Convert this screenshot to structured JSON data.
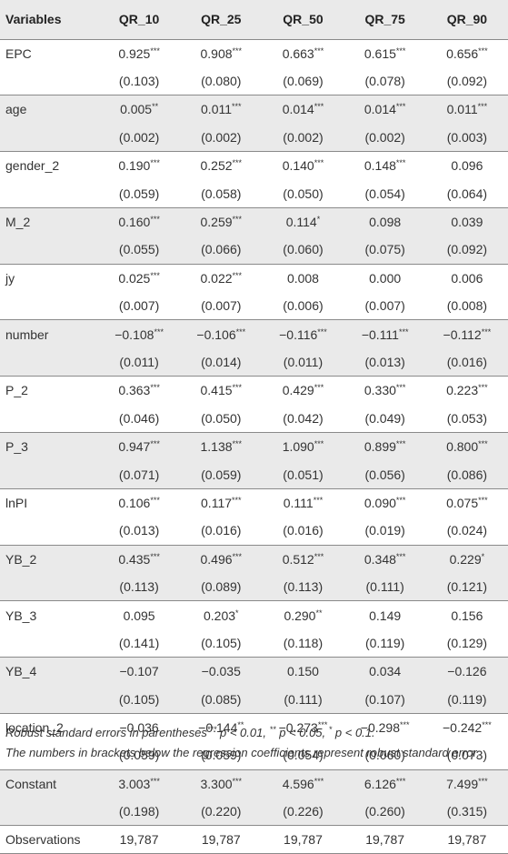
{
  "table": {
    "headers": [
      "Variables",
      "QR_10",
      "QR_25",
      "QR_50",
      "QR_75",
      "QR_90"
    ],
    "rows": [
      {
        "variable": "EPC",
        "coef": [
          [
            "0.925",
            "***"
          ],
          [
            "0.908",
            "***"
          ],
          [
            "0.663",
            "***"
          ],
          [
            "0.615",
            "***"
          ],
          [
            "0.656",
            "***"
          ]
        ],
        "se": [
          "(0.103)",
          "(0.080)",
          "(0.069)",
          "(0.078)",
          "(0.092)"
        ]
      },
      {
        "variable": "age",
        "coef": [
          [
            "0.005",
            "**"
          ],
          [
            "0.011",
            "***"
          ],
          [
            "0.014",
            "***"
          ],
          [
            "0.014",
            "***"
          ],
          [
            "0.011",
            "***"
          ]
        ],
        "se": [
          "(0.002)",
          "(0.002)",
          "(0.002)",
          "(0.002)",
          "(0.003)"
        ]
      },
      {
        "variable": "gender_2",
        "coef": [
          [
            "0.190",
            "***"
          ],
          [
            "0.252",
            "***"
          ],
          [
            "0.140",
            "***"
          ],
          [
            "0.148",
            "***"
          ],
          [
            "0.096",
            ""
          ]
        ],
        "se": [
          "(0.059)",
          "(0.058)",
          "(0.050)",
          "(0.054)",
          "(0.064)"
        ]
      },
      {
        "variable": "M_2",
        "coef": [
          [
            "0.160",
            "***"
          ],
          [
            "0.259",
            "***"
          ],
          [
            "0.114",
            "*"
          ],
          [
            "0.098",
            ""
          ],
          [
            "0.039",
            ""
          ]
        ],
        "se": [
          "(0.055)",
          "(0.066)",
          "(0.060)",
          "(0.075)",
          "(0.092)"
        ]
      },
      {
        "variable": "jy",
        "coef": [
          [
            "0.025",
            "***"
          ],
          [
            "0.022",
            "***"
          ],
          [
            "0.008",
            ""
          ],
          [
            "0.000",
            ""
          ],
          [
            "0.006",
            ""
          ]
        ],
        "se": [
          "(0.007)",
          "(0.007)",
          "(0.006)",
          "(0.007)",
          "(0.008)"
        ]
      },
      {
        "variable": "number",
        "coef": [
          [
            "−0.108",
            "***"
          ],
          [
            "−0.106",
            "***"
          ],
          [
            "−0.116",
            "***"
          ],
          [
            "−0.111",
            "***"
          ],
          [
            "−0.112",
            "***"
          ]
        ],
        "se": [
          "(0.011)",
          "(0.014)",
          "(0.011)",
          "(0.013)",
          "(0.016)"
        ]
      },
      {
        "variable": "P_2",
        "coef": [
          [
            "0.363",
            "***"
          ],
          [
            "0.415",
            "***"
          ],
          [
            "0.429",
            "***"
          ],
          [
            "0.330",
            "***"
          ],
          [
            "0.223",
            "***"
          ]
        ],
        "se": [
          "(0.046)",
          "(0.050)",
          "(0.042)",
          "(0.049)",
          "(0.053)"
        ]
      },
      {
        "variable": "P_3",
        "coef": [
          [
            "0.947",
            "***"
          ],
          [
            "1.138",
            "***"
          ],
          [
            "1.090",
            "***"
          ],
          [
            "0.899",
            "***"
          ],
          [
            "0.800",
            "***"
          ]
        ],
        "se": [
          "(0.071)",
          "(0.059)",
          "(0.051)",
          "(0.056)",
          "(0.086)"
        ]
      },
      {
        "variable": "lnPI",
        "coef": [
          [
            "0.106",
            "***"
          ],
          [
            "0.117",
            "***"
          ],
          [
            "0.111",
            "***"
          ],
          [
            "0.090",
            "***"
          ],
          [
            "0.075",
            "***"
          ]
        ],
        "se": [
          "(0.013)",
          "(0.016)",
          "(0.016)",
          "(0.019)",
          "(0.024)"
        ]
      },
      {
        "variable": "YB_2",
        "coef": [
          [
            "0.435",
            "***"
          ],
          [
            "0.496",
            "***"
          ],
          [
            "0.512",
            "***"
          ],
          [
            "0.348",
            "***"
          ],
          [
            "0.229",
            "*"
          ]
        ],
        "se": [
          "(0.113)",
          "(0.089)",
          "(0.113)",
          "(0.111)",
          "(0.121)"
        ]
      },
      {
        "variable": "YB_3",
        "coef": [
          [
            "0.095",
            ""
          ],
          [
            "0.203",
            "*"
          ],
          [
            "0.290",
            "**"
          ],
          [
            "0.149",
            ""
          ],
          [
            "0.156",
            ""
          ]
        ],
        "se": [
          "(0.141)",
          "(0.105)",
          "(0.118)",
          "(0.119)",
          "(0.129)"
        ]
      },
      {
        "variable": "YB_4",
        "coef": [
          [
            "−0.107",
            ""
          ],
          [
            "−0.035",
            ""
          ],
          [
            "0.150",
            ""
          ],
          [
            "0.034",
            ""
          ],
          [
            "−0.126",
            ""
          ]
        ],
        "se": [
          "(0.105)",
          "(0.085)",
          "(0.111)",
          "(0.107)",
          "(0.119)"
        ]
      },
      {
        "variable": "location_2",
        "coef": [
          [
            "−0.036",
            ""
          ],
          [
            "−0.144",
            "**"
          ],
          [
            "−0.273",
            "***"
          ],
          [
            "−0.298",
            "***"
          ],
          [
            "−0.242",
            "***"
          ]
        ],
        "se": [
          "(0.059)",
          "(0.059)",
          "(0.054)",
          "(0.060)",
          "(0.073)"
        ]
      },
      {
        "variable": "Constant",
        "coef": [
          [
            "3.003",
            "***"
          ],
          [
            "3.300",
            "***"
          ],
          [
            "4.596",
            "***"
          ],
          [
            "6.126",
            "***"
          ],
          [
            "7.499",
            "***"
          ]
        ],
        "se": [
          "(0.198)",
          "(0.220)",
          "(0.226)",
          "(0.260)",
          "(0.315)"
        ]
      }
    ],
    "observations": {
      "label": "Observations",
      "values": [
        "19,787",
        "19,787",
        "19,787",
        "19,787",
        "19,787"
      ]
    }
  },
  "notes": {
    "line1_prefix": "Robust standard errors in parentheses",
    "line1_p1_stars": "***",
    "line1_p1": " p < 0.01, ",
    "line1_p2_stars": "**",
    "line1_p2": " p < 0.05, ",
    "line1_p3_stars": "*",
    "line1_p3": " p < 0.1.",
    "line2": "The numbers in brackets below the regression coefficients represent robust standard error."
  }
}
